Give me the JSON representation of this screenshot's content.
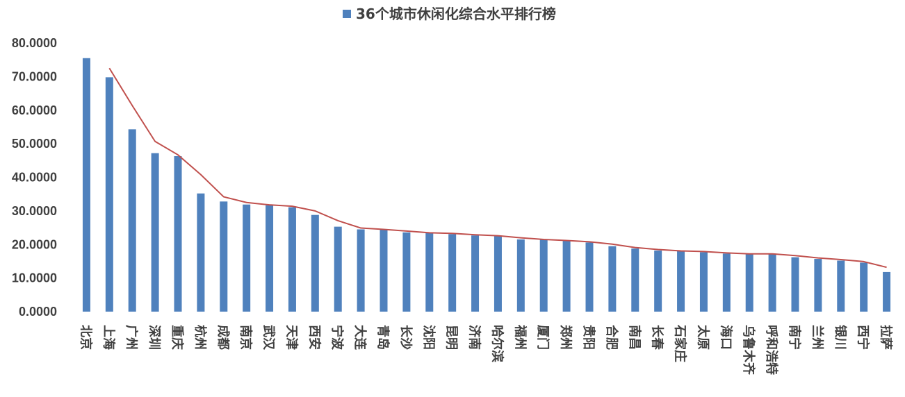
{
  "chart_data": {
    "type": "bar",
    "title": "",
    "xlabel": "",
    "ylabel": "",
    "ylim": [
      0,
      80
    ],
    "yticks": [
      "0.0000",
      "10.0000",
      "20.0000",
      "30.0000",
      "40.0000",
      "50.0000",
      "60.0000",
      "70.0000",
      "80.0000"
    ],
    "grid": false,
    "legend_position": "top-center",
    "categories": [
      "北京",
      "上海",
      "广州",
      "深圳",
      "重庆",
      "杭州",
      "成都",
      "南京",
      "武汉",
      "天津",
      "西安",
      "宁波",
      "大连",
      "青岛",
      "长沙",
      "沈阳",
      "昆明",
      "济南",
      "哈尔滨",
      "福州",
      "厦门",
      "郑州",
      "贵阳",
      "合肥",
      "南昌",
      "长春",
      "石家庄",
      "太原",
      "海口",
      "乌鲁木齐",
      "呼和浩特",
      "南宁",
      "兰州",
      "银川",
      "西宁",
      "拉萨"
    ],
    "series": [
      {
        "name": "36个城市休闲化综合水平排行榜",
        "type": "bar",
        "color": "#4f81bd",
        "values": [
          75.5,
          69.8,
          54.3,
          47.2,
          46.3,
          35.2,
          32.8,
          31.9,
          31.7,
          31.1,
          28.8,
          25.3,
          24.5,
          24.4,
          23.6,
          23.4,
          23.1,
          22.7,
          22.5,
          21.5,
          21.4,
          21.1,
          20.6,
          19.5,
          18.8,
          18.2,
          18.1,
          17.7,
          17.3,
          17.3,
          17.2,
          16.2,
          15.7,
          15.2,
          14.6,
          11.8
        ]
      },
      {
        "type": "line",
        "color": "#c0504d",
        "values": [
          null,
          72.5,
          61.4,
          50.7,
          46.7,
          40.8,
          34.2,
          32.5,
          31.8,
          31.4,
          30.0,
          27.1,
          24.9,
          24.5,
          24.0,
          23.5,
          23.3,
          22.9,
          22.6,
          22.0,
          21.5,
          21.2,
          20.8,
          20.1,
          19.1,
          18.5,
          18.1,
          17.9,
          17.5,
          17.2,
          17.2,
          16.7,
          16.0,
          15.5,
          14.9,
          13.2
        ]
      }
    ]
  }
}
